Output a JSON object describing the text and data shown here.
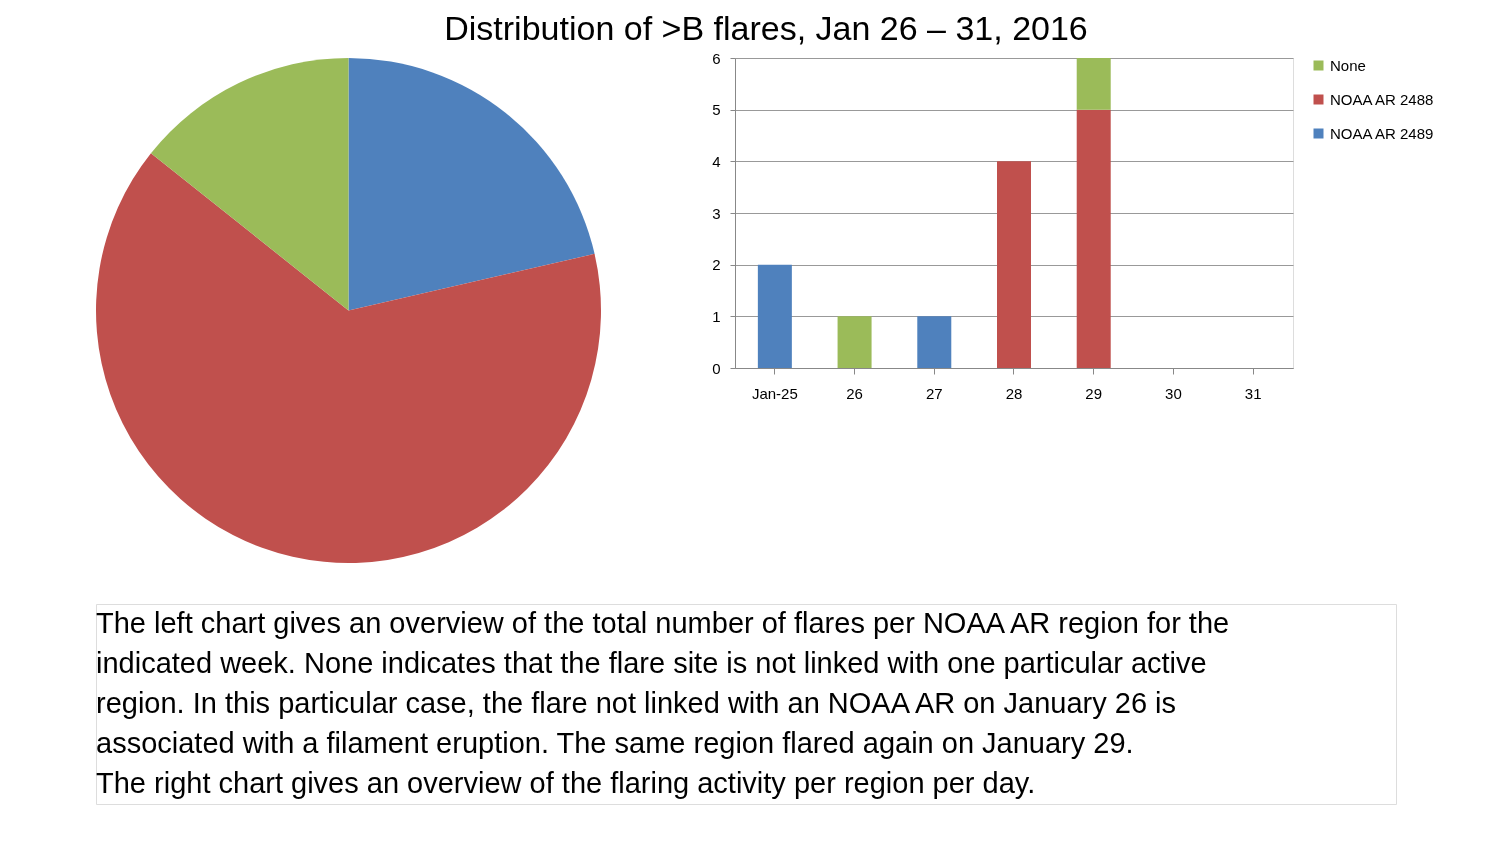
{
  "chart_data": [
    {
      "type": "pie",
      "title": "Distribution of >B flares, Jan 26 – 31, 2016",
      "categories": [
        null,
        null,
        null
      ],
      "values": [
        21.4,
        64.3,
        14.3
      ],
      "colors": [
        "#4f81bd",
        "#c0504d",
        "#9bbb59"
      ],
      "annotations": [
        "The left chart gives an overview of the total number of flares per NOAA AR region for the",
        "indicated week. None indicates that the flare site is not linked with one particular active",
        "region. In this particular case, the flare not linked with an NOAA AR on January 26 is",
        "associated with a filament eruption. The same region flared again on January 29.",
        "The right chart gives an overview of the flaring activity per region per day."
      ]
    },
    {
      "type": "bar",
      "stacked": true,
      "categories": [
        "Jan-25",
        "26",
        "27",
        "28",
        "29",
        "30",
        "31"
      ],
      "series": [
        {
          "name": "NOAA AR 2489",
          "color": "#4f81bd",
          "values": [
            2,
            null,
            1,
            null,
            null,
            null,
            null
          ]
        },
        {
          "name": "NOAA AR 2488",
          "color": "#c0504d",
          "values": [
            null,
            null,
            null,
            4,
            5,
            null,
            null
          ]
        },
        {
          "name": "None",
          "color": "#9bbb59",
          "values": [
            null,
            1,
            null,
            null,
            1,
            null,
            null
          ]
        }
      ],
      "ylim": [
        0,
        6
      ],
      "yticks": [
        0,
        1,
        2,
        3,
        4,
        5,
        6
      ],
      "grid": "y",
      "legend": "right"
    }
  ]
}
